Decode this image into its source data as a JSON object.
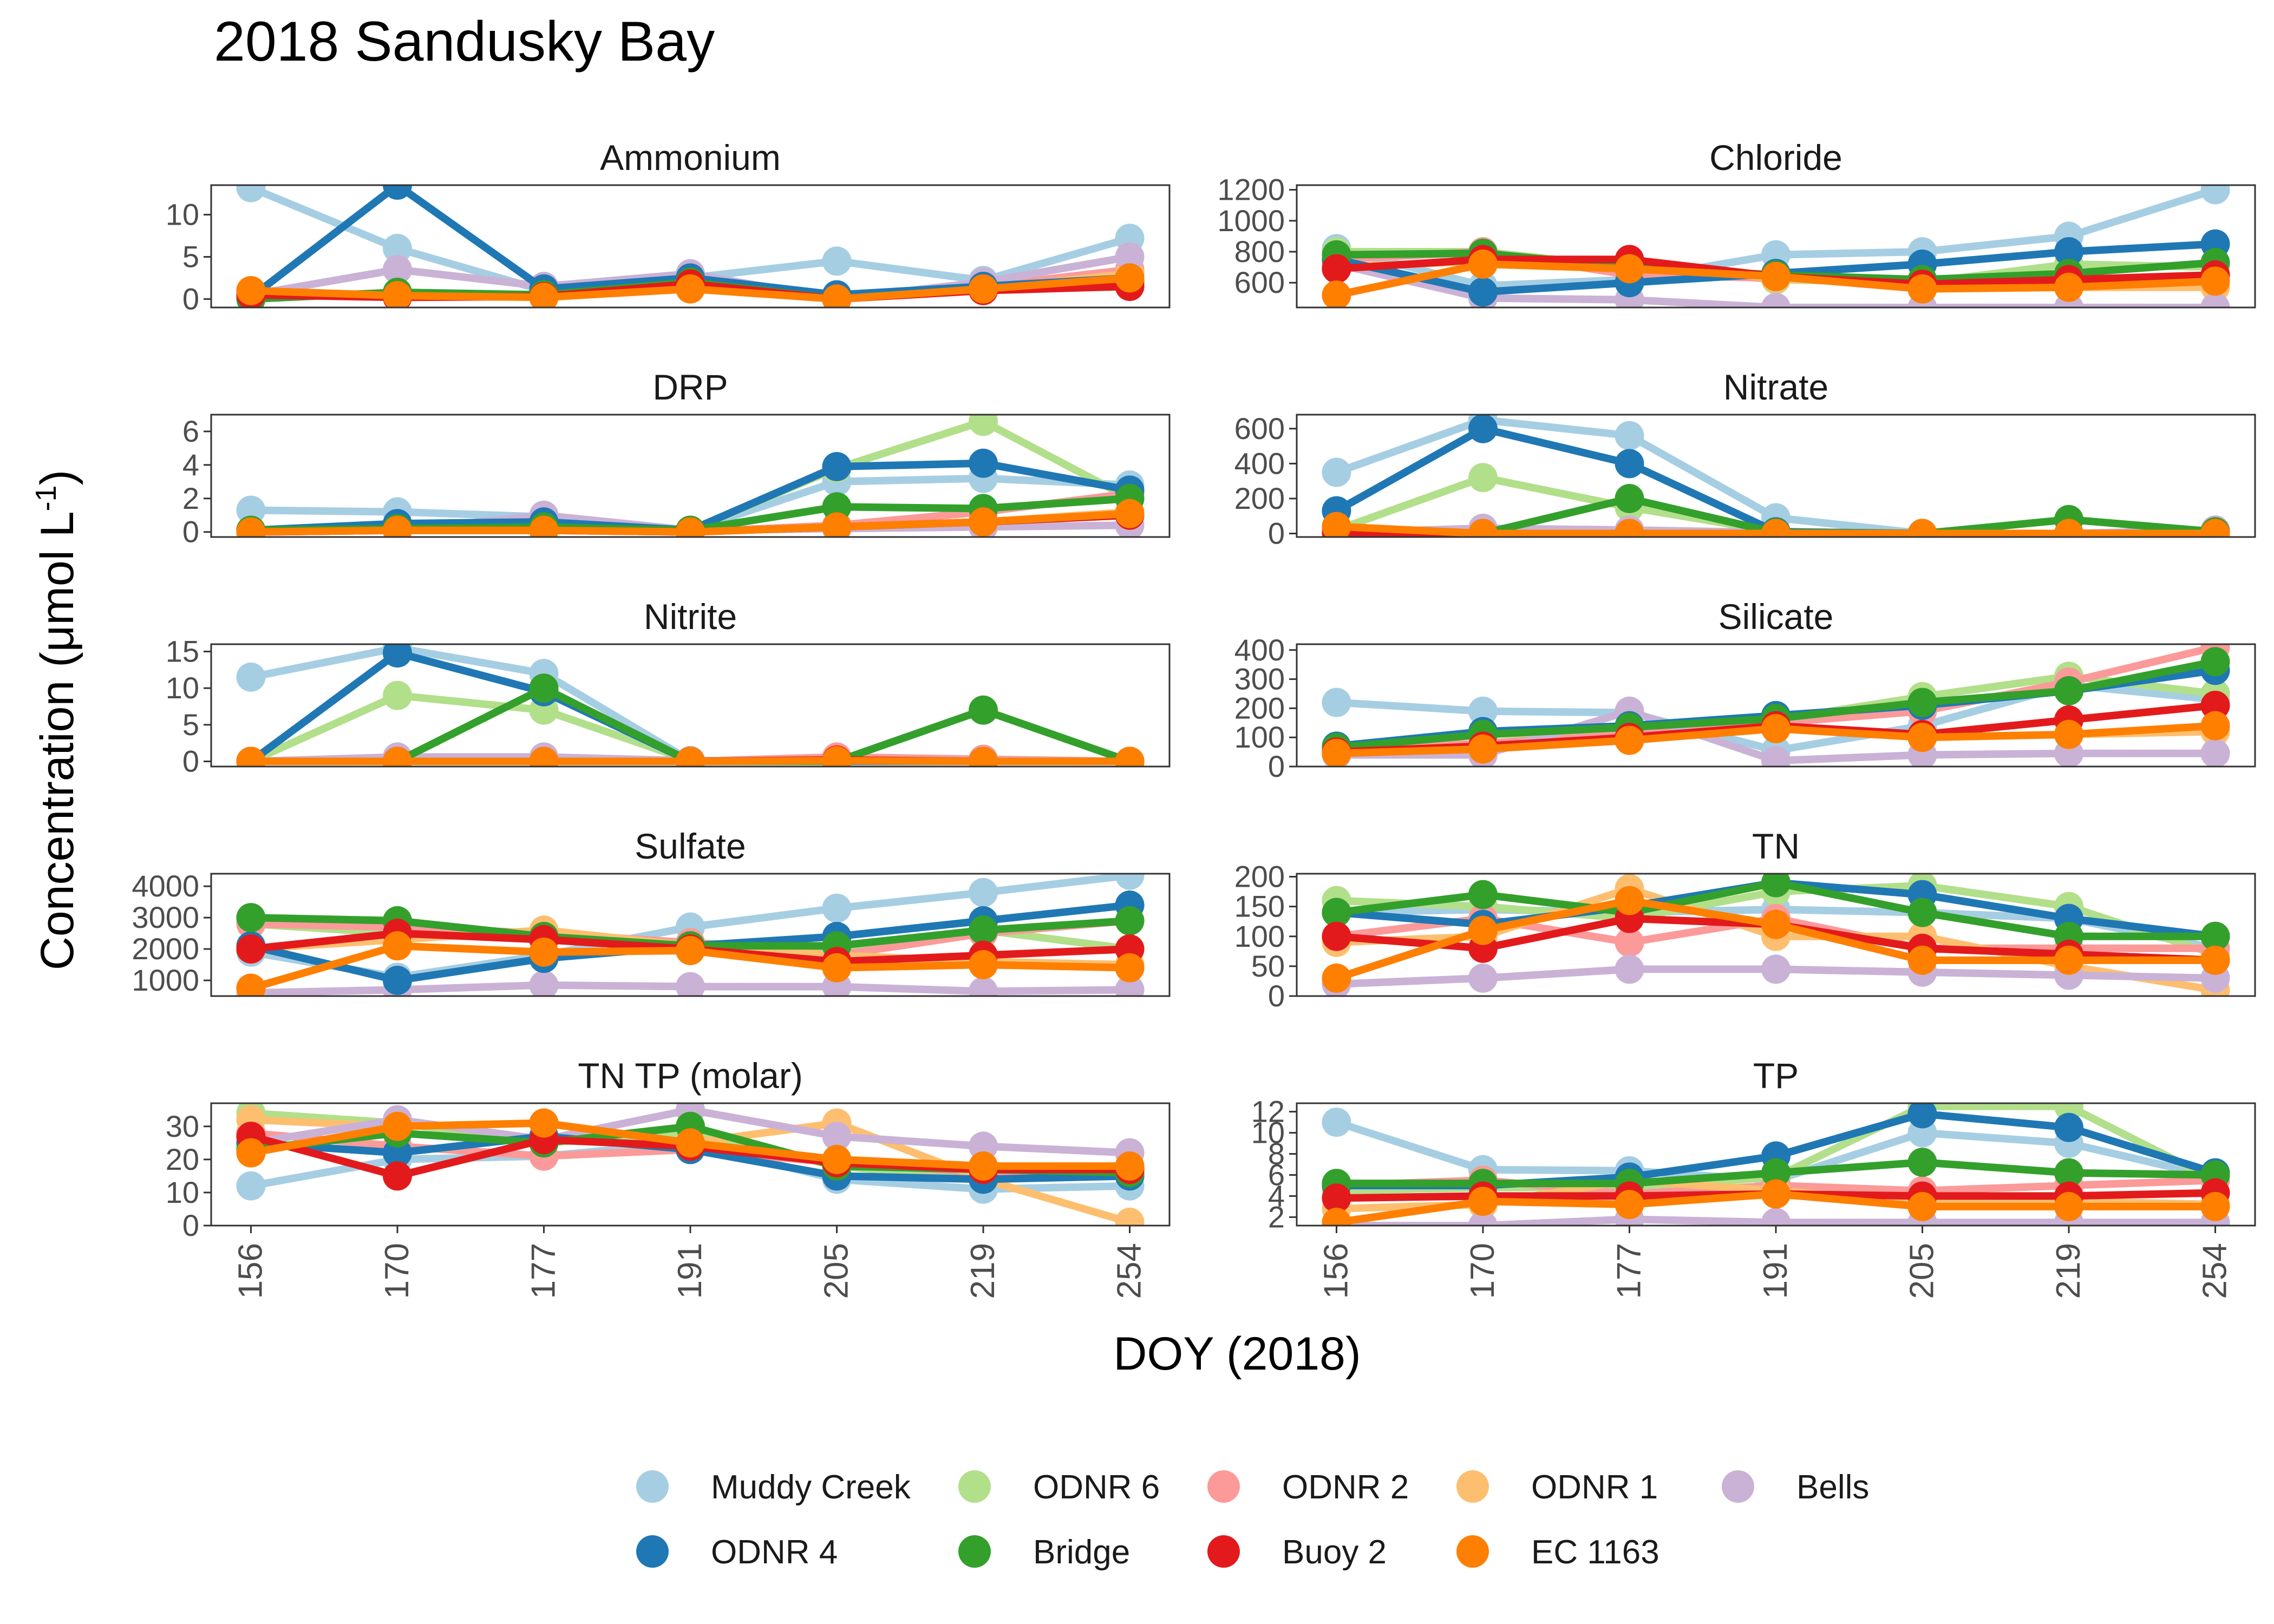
{
  "chart_data": {
    "type": "line",
    "title": "2018 Sandusky Bay",
    "xlabel": "DOY (2018)",
    "ylabel_main": "Concentration (μmol L",
    "ylabel_sup": "-1",
    "ylabel_tail": ")",
    "x": [
      156,
      170,
      177,
      191,
      205,
      219,
      254
    ],
    "x_tick_labels": [
      "156",
      "170",
      "177",
      "191",
      "205",
      "219",
      "254"
    ],
    "legend_position": "bottom",
    "series": [
      {
        "name": "Muddy Creek",
        "color": "#a6cee3"
      },
      {
        "name": "ODNR 6",
        "color": "#b2df8a"
      },
      {
        "name": "ODNR 2",
        "color": "#fb9a99"
      },
      {
        "name": "ODNR 1",
        "color": "#fdbf6f"
      },
      {
        "name": "Bells",
        "color": "#cab2d6"
      },
      {
        "name": "ODNR 4",
        "color": "#1f78b4"
      },
      {
        "name": "Bridge",
        "color": "#33a02c"
      },
      {
        "name": "Buoy 2",
        "color": "#e31a1c"
      },
      {
        "name": "EC 1163",
        "color": "#ff7f00"
      }
    ],
    "panels": [
      {
        "title": "Ammonium",
        "ylim": [
          -1,
          13.5
        ],
        "ticks": [
          0,
          5,
          10
        ],
        "values": {
          "Muddy Creek": [
            13.2,
            6,
            1,
            2.5,
            4.5,
            2.2,
            7.2
          ],
          "ODNR 6": [
            0.5,
            0.5,
            0.3,
            1.5,
            0,
            1.5,
            3.2
          ],
          "ODNR 2": [
            0.5,
            0.4,
            0.4,
            1.8,
            0,
            1.5,
            3.5
          ],
          "ODNR 1": [
            0.8,
            0.5,
            0.4,
            1.5,
            0,
            1.2,
            3
          ],
          "Bells": [
            0.5,
            3.5,
            1.5,
            3,
            0,
            2,
            5
          ],
          "ODNR 4": [
            0.2,
            13.5,
            1.2,
            2.5,
            0.5,
            1.5,
            2.5
          ],
          "Bridge": [
            0,
            0.8,
            0.5,
            2,
            0,
            1.2,
            2
          ],
          "Buoy 2": [
            0.5,
            0.2,
            0.3,
            1.8,
            0,
            1,
            1.5
          ],
          "EC 1163": [
            1,
            0.4,
            0.2,
            1.2,
            0,
            1.2,
            2.5
          ]
        }
      },
      {
        "title": "Chloride",
        "ylim": [
          440,
          1230
        ],
        "ticks": [
          600,
          800,
          1000,
          1200
        ],
        "values": {
          "Muddy Creek": [
            820,
            580,
            620,
            780,
            800,
            900,
            1200
          ],
          "ODNR 6": [
            800,
            800,
            700,
            620,
            600,
            720,
            700
          ],
          "ODNR 2": [
            750,
            800,
            650,
            630,
            580,
            600,
            650
          ],
          "ODNR 1": [
            700,
            740,
            720,
            630,
            580,
            570,
            570
          ],
          "Bells": [
            720,
            500,
            490,
            440,
            440,
            440,
            440
          ],
          "ODNR 4": [
            750,
            540,
            600,
            660,
            720,
            800,
            850
          ],
          "Bridge": [
            780,
            790,
            700,
            650,
            620,
            660,
            730
          ],
          "Buoy 2": [
            690,
            750,
            750,
            640,
            590,
            620,
            650
          ],
          "EC 1163": [
            520,
            720,
            690,
            640,
            560,
            570,
            610
          ]
        }
      },
      {
        "title": "DRP",
        "ylim": [
          -0.3,
          7
        ],
        "ticks": [
          0,
          2,
          4,
          6
        ],
        "values": {
          "Muddy Creek": [
            1.3,
            1.2,
            0.9,
            0.1,
            3,
            3.2,
            2.8
          ],
          "ODNR 6": [
            0.1,
            0.3,
            0.2,
            0.1,
            3.8,
            6.6,
            2
          ],
          "ODNR 2": [
            0,
            0.1,
            0.1,
            0,
            0.4,
            1.2,
            2.3
          ],
          "ODNR 1": [
            0,
            0.1,
            0.1,
            0,
            0.3,
            0.6,
            1.2
          ],
          "Bells": [
            0,
            0.1,
            1,
            0.1,
            0.2,
            0.3,
            0.4
          ],
          "ODNR 4": [
            0.1,
            0.5,
            0.6,
            0.1,
            3.9,
            4.1,
            2.5
          ],
          "Bridge": [
            0.1,
            0.2,
            0.3,
            0.1,
            1.5,
            1.4,
            2
          ],
          "Buoy 2": [
            0,
            0.1,
            0.1,
            0,
            0.3,
            0.6,
            1
          ],
          "EC 1163": [
            0,
            0.1,
            0.1,
            0,
            0.3,
            0.6,
            1.1
          ]
        }
      },
      {
        "title": "Nitrate",
        "ylim": [
          -20,
          680
        ],
        "ticks": [
          0,
          200,
          400,
          600
        ],
        "values": {
          "Muddy Creek": [
            350,
            650,
            560,
            90,
            0,
            0,
            10
          ],
          "ODNR 6": [
            20,
            320,
            150,
            10,
            0,
            0,
            0
          ],
          "ODNR 2": [
            20,
            5,
            5,
            5,
            0,
            0,
            0
          ],
          "ODNR 1": [
            10,
            0,
            0,
            0,
            0,
            0,
            0
          ],
          "Bells": [
            5,
            30,
            20,
            5,
            0,
            0,
            20
          ],
          "ODNR 4": [
            130,
            600,
            400,
            10,
            0,
            0,
            0
          ],
          "Bridge": [
            10,
            0,
            200,
            5,
            0,
            80,
            10
          ],
          "Buoy 2": [
            5,
            0,
            0,
            0,
            0,
            0,
            0
          ],
          "EC 1163": [
            40,
            0,
            0,
            0,
            0,
            0,
            0
          ]
        }
      },
      {
        "title": "Nitrite",
        "ylim": [
          -0.7,
          16
        ],
        "ticks": [
          0,
          5,
          10,
          15
        ],
        "values": {
          "Muddy Creek": [
            11.5,
            15.5,
            12,
            0.1,
            0.2,
            0.1,
            0
          ],
          "ODNR 6": [
            0,
            9,
            7,
            0.1,
            0.1,
            0,
            0
          ],
          "ODNR 2": [
            0,
            0.1,
            0,
            0,
            0.6,
            0.3,
            0
          ],
          "ODNR 1": [
            0,
            0,
            0,
            0,
            0.2,
            0,
            0
          ],
          "Bells": [
            0,
            0.6,
            0.6,
            0.1,
            0.2,
            0.1,
            0
          ],
          "ODNR 4": [
            0,
            14.8,
            9.5,
            0,
            0,
            0,
            0
          ],
          "Bridge": [
            0,
            0,
            10,
            0,
            0,
            7,
            0
          ],
          "Buoy 2": [
            0,
            0,
            0,
            0,
            0.2,
            0,
            0
          ],
          "EC 1163": [
            0,
            0,
            0,
            0,
            0.1,
            0,
            0
          ]
        }
      },
      {
        "title": "Silicate",
        "ylim": [
          0,
          420
        ],
        "ticks": [
          0,
          100,
          200,
          300,
          400
        ],
        "values": {
          "Muddy Creek": [
            220,
            190,
            185,
            55,
            140,
            280,
            230
          ],
          "ODNR 6": [
            60,
            110,
            120,
            160,
            240,
            310,
            250
          ],
          "ODNR 2": [
            55,
            80,
            110,
            150,
            190,
            290,
            410
          ],
          "ODNR 1": [
            50,
            70,
            90,
            140,
            100,
            110,
            120
          ],
          "Bells": [
            40,
            40,
            190,
            20,
            40,
            45,
            45
          ],
          "ODNR 4": [
            70,
            120,
            140,
            175,
            210,
            260,
            330
          ],
          "Bridge": [
            65,
            110,
            135,
            165,
            220,
            260,
            360
          ],
          "Buoy 2": [
            50,
            70,
            100,
            140,
            110,
            160,
            210
          ],
          "EC 1163": [
            45,
            60,
            90,
            130,
            100,
            110,
            140
          ]
        }
      },
      {
        "title": "Sulfate",
        "ylim": [
          500,
          4400
        ],
        "ticks": [
          1000,
          2000,
          3000,
          4000
        ],
        "values": {
          "Muddy Creek": [
            1900,
            1100,
            1800,
            2700,
            3300,
            3800,
            4350
          ],
          "ODNR 6": [
            2800,
            2500,
            2300,
            2200,
            2000,
            2600,
            2000
          ],
          "ODNR 2": [
            2800,
            2700,
            2500,
            2200,
            1800,
            2500,
            2900
          ],
          "ODNR 1": [
            2000,
            2300,
            2600,
            2100,
            1800,
            1600,
            1500
          ],
          "Bells": [
            600,
            700,
            850,
            800,
            800,
            650,
            700
          ],
          "ODNR 4": [
            2100,
            1000,
            1700,
            2100,
            2400,
            2900,
            3400
          ],
          "Bridge": [
            3000,
            2900,
            2400,
            2100,
            2100,
            2600,
            2900
          ],
          "Buoy 2": [
            2000,
            2500,
            2300,
            2000,
            1600,
            1800,
            2000
          ],
          "EC 1163": [
            750,
            2100,
            1900,
            1950,
            1400,
            1500,
            1400
          ]
        }
      },
      {
        "title": "TN",
        "ylim": [
          0,
          205
        ],
        "ticks": [
          0,
          50,
          100,
          150,
          200
        ],
        "values": {
          "Muddy Creek": [
            140,
            145,
            140,
            145,
            140,
            130,
            80
          ],
          "ODNR 6": [
            160,
            150,
            130,
            175,
            185,
            150,
            70
          ],
          "ODNR 2": [
            100,
            130,
            90,
            130,
            80,
            80,
            80
          ],
          "ODNR 1": [
            90,
            100,
            180,
            100,
            100,
            50,
            10
          ],
          "Bells": [
            20,
            30,
            45,
            45,
            40,
            35,
            30
          ],
          "ODNR 4": [
            140,
            120,
            150,
            190,
            170,
            130,
            100
          ],
          "Bridge": [
            140,
            170,
            140,
            190,
            140,
            100,
            100
          ],
          "Buoy 2": [
            100,
            80,
            130,
            120,
            80,
            70,
            60
          ],
          "EC 1163": [
            30,
            110,
            160,
            120,
            60,
            60,
            60
          ]
        }
      },
      {
        "title": "TN TP (molar)",
        "ylim": [
          0,
          37
        ],
        "ticks": [
          0,
          10,
          20,
          30
        ],
        "values": {
          "Muddy Creek": [
            12,
            20,
            21,
            25,
            14,
            11,
            12
          ],
          "ODNR 6": [
            34,
            31,
            25,
            28,
            18,
            14,
            15
          ],
          "ODNR 2": [
            28,
            24,
            21,
            23,
            19,
            16,
            16
          ],
          "ODNR 1": [
            32,
            30,
            31,
            25,
            31,
            14,
            1
          ],
          "Bells": [
            25,
            32,
            26,
            35,
            27,
            24,
            22
          ],
          "ODNR 4": [
            25,
            22,
            27,
            23,
            15,
            14,
            15
          ],
          "Bridge": [
            23,
            28,
            25,
            30,
            18,
            17,
            16
          ],
          "Buoy 2": [
            27,
            15,
            26,
            24,
            19,
            17,
            17
          ],
          "EC 1163": [
            22,
            30,
            31,
            25,
            20,
            18,
            18
          ]
        }
      },
      {
        "title": "TP",
        "ylim": [
          1.2,
          12.8
        ],
        "ticks": [
          2,
          4,
          6,
          8,
          10,
          12
        ],
        "values": {
          "Muddy Creek": [
            11,
            6.5,
            6.4,
            5.5,
            10,
            9,
            5.8
          ],
          "ODNR 6": [
            4.5,
            4.8,
            4.8,
            5.8,
            12.5,
            12.5,
            5.5
          ],
          "ODNR 2": [
            5,
            5.5,
            4.2,
            5,
            4.5,
            5,
            5.5
          ],
          "ODNR 1": [
            2.8,
            3.2,
            5.5,
            4.5,
            3.5,
            3.5,
            3.2
          ],
          "Bells": [
            1.2,
            1.2,
            1.8,
            1.5,
            1.5,
            1.5,
            1.5
          ],
          "ODNR 4": [
            5,
            5,
            5.8,
            7.8,
            11.8,
            10.5,
            6.2
          ],
          "Bridge": [
            5.2,
            5.2,
            5.2,
            6.2,
            7.2,
            6.2,
            6
          ],
          "Buoy 2": [
            3.8,
            4,
            4,
            4.2,
            4,
            4,
            4.3
          ],
          "EC 1163": [
            1.5,
            3.5,
            3.2,
            4.2,
            3,
            3,
            3
          ]
        }
      }
    ]
  }
}
